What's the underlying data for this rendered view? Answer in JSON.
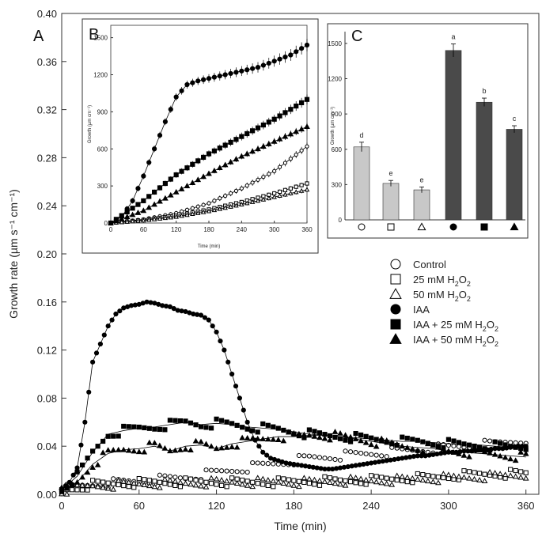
{
  "chart_data": [
    {
      "id": "A",
      "panel_label": "A",
      "type": "scatter",
      "xlabel": "Time (min)",
      "ylabel": "Growth rate (µm s⁻¹ cm⁻¹)",
      "xlim": [
        0,
        370
      ],
      "ylim": [
        0,
        0.4
      ],
      "xticks": [
        0,
        60,
        120,
        180,
        240,
        300,
        360
      ],
      "yticks": [
        0.0,
        0.04,
        0.08,
        0.12,
        0.16,
        0.2,
        0.24,
        0.28,
        0.32,
        0.36,
        0.4
      ],
      "ytick_labels": [
        "0.00",
        "0.04",
        "0.08",
        "0.12",
        "0.16",
        "0.20",
        "0.24",
        "0.28",
        "0.32",
        "0.36",
        "0.40"
      ],
      "series": [
        {
          "name": "Control",
          "label_text": "Control",
          "marker": "circle-open",
          "points": [
            [
              0,
              0.004
            ],
            [
              24,
              0.008
            ],
            [
              48,
              0.01
            ],
            [
              72,
              0.012
            ],
            [
              96,
              0.014
            ],
            [
              120,
              0.018
            ],
            [
              144,
              0.022
            ],
            [
              168,
              0.026
            ],
            [
              192,
              0.03
            ],
            [
              216,
              0.032
            ],
            [
              240,
              0.034
            ],
            [
              264,
              0.036
            ],
            [
              288,
              0.038
            ],
            [
              312,
              0.04
            ],
            [
              336,
              0.042
            ],
            [
              360,
              0.046
            ]
          ]
        },
        {
          "name": "25 mM H2O2",
          "label_main": "25 mM H",
          "label_sub": "2",
          "label_tail": "O",
          "label_sub2": "2",
          "marker": "square-open",
          "points": [
            [
              0,
              0.003
            ],
            [
              24,
              0.008
            ],
            [
              48,
              0.009
            ],
            [
              72,
              0.01
            ],
            [
              96,
              0.01
            ],
            [
              120,
              0.01
            ],
            [
              144,
              0.01
            ],
            [
              168,
              0.01
            ],
            [
              192,
              0.011
            ],
            [
              216,
              0.011
            ],
            [
              240,
              0.012
            ],
            [
              264,
              0.013
            ],
            [
              288,
              0.014
            ],
            [
              312,
              0.016
            ],
            [
              336,
              0.017
            ],
            [
              360,
              0.017
            ]
          ]
        },
        {
          "name": "50 mM H2O2",
          "label_main": "50 mM H",
          "label_sub": "2",
          "label_tail": "O",
          "label_sub2": "2",
          "marker": "triangle-open",
          "points": [
            [
              0,
              0.003
            ],
            [
              24,
              0.007
            ],
            [
              48,
              0.008
            ],
            [
              72,
              0.009
            ],
            [
              96,
              0.009
            ],
            [
              120,
              0.01
            ],
            [
              144,
              0.01
            ],
            [
              168,
              0.01
            ],
            [
              192,
              0.01
            ],
            [
              216,
              0.011
            ],
            [
              240,
              0.011
            ],
            [
              264,
              0.012
            ],
            [
              288,
              0.013
            ],
            [
              312,
              0.014
            ],
            [
              336,
              0.015
            ],
            [
              360,
              0.016
            ]
          ]
        },
        {
          "name": "IAA",
          "label_text": "IAA",
          "marker": "circle-filled",
          "points": [
            [
              0,
              0.004
            ],
            [
              6,
              0.01
            ],
            [
              12,
              0.022
            ],
            [
              18,
              0.06
            ],
            [
              24,
              0.11
            ],
            [
              30,
              0.125
            ],
            [
              36,
              0.14
            ],
            [
              42,
              0.15
            ],
            [
              48,
              0.155
            ],
            [
              54,
              0.157
            ],
            [
              60,
              0.158
            ],
            [
              66,
              0.16
            ],
            [
              72,
              0.159
            ],
            [
              78,
              0.157
            ],
            [
              84,
              0.156
            ],
            [
              90,
              0.153
            ],
            [
              96,
              0.152
            ],
            [
              102,
              0.15
            ],
            [
              108,
              0.149
            ],
            [
              114,
              0.145
            ],
            [
              120,
              0.135
            ],
            [
              126,
              0.12
            ],
            [
              132,
              0.1
            ],
            [
              138,
              0.08
            ],
            [
              144,
              0.06
            ],
            [
              150,
              0.045
            ],
            [
              156,
              0.035
            ],
            [
              162,
              0.03
            ],
            [
              168,
              0.028
            ],
            [
              174,
              0.026
            ],
            [
              180,
              0.025
            ],
            [
              186,
              0.024
            ],
            [
              192,
              0.023
            ],
            [
              198,
              0.022
            ],
            [
              204,
              0.021
            ],
            [
              210,
              0.021
            ],
            [
              216,
              0.022
            ],
            [
              222,
              0.023
            ],
            [
              228,
              0.024
            ],
            [
              234,
              0.025
            ],
            [
              240,
              0.026
            ],
            [
              246,
              0.027
            ],
            [
              252,
              0.028
            ],
            [
              258,
              0.029
            ],
            [
              264,
              0.03
            ],
            [
              270,
              0.031
            ],
            [
              276,
              0.032
            ],
            [
              282,
              0.032
            ],
            [
              288,
              0.033
            ],
            [
              294,
              0.034
            ],
            [
              300,
              0.035
            ],
            [
              306,
              0.035
            ],
            [
              312,
              0.036
            ],
            [
              318,
              0.036
            ],
            [
              324,
              0.037
            ],
            [
              330,
              0.037
            ],
            [
              336,
              0.038
            ],
            [
              342,
              0.038
            ],
            [
              348,
              0.039
            ],
            [
              354,
              0.04
            ],
            [
              360,
              0.04
            ]
          ]
        },
        {
          "name": "IAA + 25 mM H2O2",
          "label_main": "IAA + 25 mM H",
          "label_sub": "2",
          "label_tail": "O",
          "label_sub2": "2",
          "marker": "square-filled",
          "points": [
            [
              0,
              0.004
            ],
            [
              12,
              0.015
            ],
            [
              24,
              0.035
            ],
            [
              36,
              0.05
            ],
            [
              48,
              0.053
            ],
            [
              60,
              0.055
            ],
            [
              72,
              0.056
            ],
            [
              84,
              0.058
            ],
            [
              96,
              0.06
            ],
            [
              108,
              0.058
            ],
            [
              120,
              0.059
            ],
            [
              132,
              0.058
            ],
            [
              144,
              0.056
            ],
            [
              156,
              0.055
            ],
            [
              168,
              0.054
            ],
            [
              180,
              0.052
            ],
            [
              192,
              0.05
            ],
            [
              204,
              0.049
            ],
            [
              216,
              0.048
            ],
            [
              228,
              0.047
            ],
            [
              240,
              0.046
            ],
            [
              252,
              0.045
            ],
            [
              264,
              0.044
            ],
            [
              276,
              0.044
            ],
            [
              288,
              0.043
            ],
            [
              300,
              0.042
            ],
            [
              312,
              0.041
            ],
            [
              324,
              0.041
            ],
            [
              336,
              0.04
            ],
            [
              348,
              0.039
            ],
            [
              360,
              0.039
            ]
          ]
        },
        {
          "name": "IAA + 50 mM H2O2",
          "label_main": "IAA + 50 mM H",
          "label_sub": "2",
          "label_tail": "O",
          "label_sub2": "2",
          "marker": "triangle-filled",
          "points": [
            [
              0,
              0.003
            ],
            [
              12,
              0.01
            ],
            [
              24,
              0.025
            ],
            [
              36,
              0.034
            ],
            [
              48,
              0.037
            ],
            [
              60,
              0.038
            ],
            [
              72,
              0.04
            ],
            [
              84,
              0.036
            ],
            [
              96,
              0.04
            ],
            [
              108,
              0.041
            ],
            [
              120,
              0.038
            ],
            [
              132,
              0.042
            ],
            [
              144,
              0.044
            ],
            [
              156,
              0.046
            ],
            [
              168,
              0.048
            ],
            [
              180,
              0.048
            ],
            [
              192,
              0.049
            ],
            [
              204,
              0.049
            ],
            [
              216,
              0.048
            ],
            [
              228,
              0.046
            ],
            [
              240,
              0.044
            ],
            [
              252,
              0.042
            ],
            [
              264,
              0.04
            ],
            [
              276,
              0.039
            ],
            [
              288,
              0.038
            ],
            [
              300,
              0.036
            ],
            [
              312,
              0.035
            ],
            [
              324,
              0.034
            ],
            [
              336,
              0.033
            ],
            [
              348,
              0.032
            ],
            [
              360,
              0.031
            ]
          ]
        }
      ]
    },
    {
      "id": "B",
      "panel_label": "B",
      "type": "line",
      "xlabel": "Time (min)",
      "ylabel": "Growth (µm cm⁻¹)",
      "xlim": [
        0,
        360
      ],
      "ylim": [
        0,
        1600
      ],
      "xticks": [
        0,
        60,
        120,
        180,
        240,
        300,
        360
      ],
      "yticks": [
        0,
        300,
        600,
        900,
        1200,
        1500
      ],
      "series": [
        {
          "name": "Control",
          "marker": "circle-open",
          "x": [
            0,
            60,
            120,
            180,
            240,
            300,
            360
          ],
          "y": [
            0,
            30,
            80,
            160,
            280,
            420,
            620
          ],
          "err": 30
        },
        {
          "name": "25 mM H2O2",
          "marker": "square-open",
          "x": [
            0,
            60,
            120,
            180,
            240,
            300,
            360
          ],
          "y": [
            0,
            25,
            60,
            110,
            170,
            240,
            320
          ],
          "err": 20
        },
        {
          "name": "50 mM H2O2",
          "marker": "triangle-open",
          "x": [
            0,
            60,
            120,
            180,
            240,
            300,
            360
          ],
          "y": [
            0,
            20,
            50,
            95,
            150,
            210,
            270
          ],
          "err": 20
        },
        {
          "name": "IAA",
          "marker": "circle-filled",
          "x": [
            0,
            20,
            40,
            60,
            80,
            100,
            120,
            140,
            160,
            180,
            210,
            240,
            270,
            300,
            330,
            360
          ],
          "y": [
            0,
            50,
            180,
            380,
            600,
            820,
            1020,
            1120,
            1150,
            1170,
            1200,
            1230,
            1260,
            1310,
            1360,
            1440
          ],
          "err": 50
        },
        {
          "name": "IAA + 25 mM H2O2",
          "marker": "square-filled",
          "x": [
            0,
            60,
            120,
            180,
            240,
            300,
            360
          ],
          "y": [
            0,
            180,
            390,
            560,
            700,
            840,
            1000
          ],
          "err": 40
        },
        {
          "name": "IAA + 50 mM H2O2",
          "marker": "triangle-filled",
          "x": [
            0,
            60,
            120,
            180,
            240,
            300,
            360
          ],
          "y": [
            0,
            100,
            250,
            400,
            540,
            660,
            780
          ],
          "err": 30
        }
      ]
    },
    {
      "id": "C",
      "panel_label": "C",
      "type": "bar",
      "ylabel": "Growth (µm cm⁻¹)",
      "ylim": [
        0,
        1600
      ],
      "yticks": [
        0,
        300,
        600,
        900,
        1200,
        1500
      ],
      "categories": [
        "Control",
        "25 mM H2O2",
        "50 mM H2O2",
        "IAA",
        "IAA + 25 mM H2O2",
        "IAA + 50 mM H2O2"
      ],
      "category_markers": [
        "circle-open",
        "square-open",
        "triangle-open",
        "circle-filled",
        "square-filled",
        "triangle-filled"
      ],
      "values": [
        620,
        310,
        255,
        1440,
        1000,
        770
      ],
      "errors": [
        40,
        25,
        25,
        55,
        35,
        30
      ],
      "letters": [
        "d",
        "e",
        "e",
        "a",
        "b",
        "c"
      ],
      "bar_colors": [
        "#c8c8c8",
        "#c8c8c8",
        "#c8c8c8",
        "#4a4a4a",
        "#4a4a4a",
        "#4a4a4a"
      ]
    }
  ]
}
